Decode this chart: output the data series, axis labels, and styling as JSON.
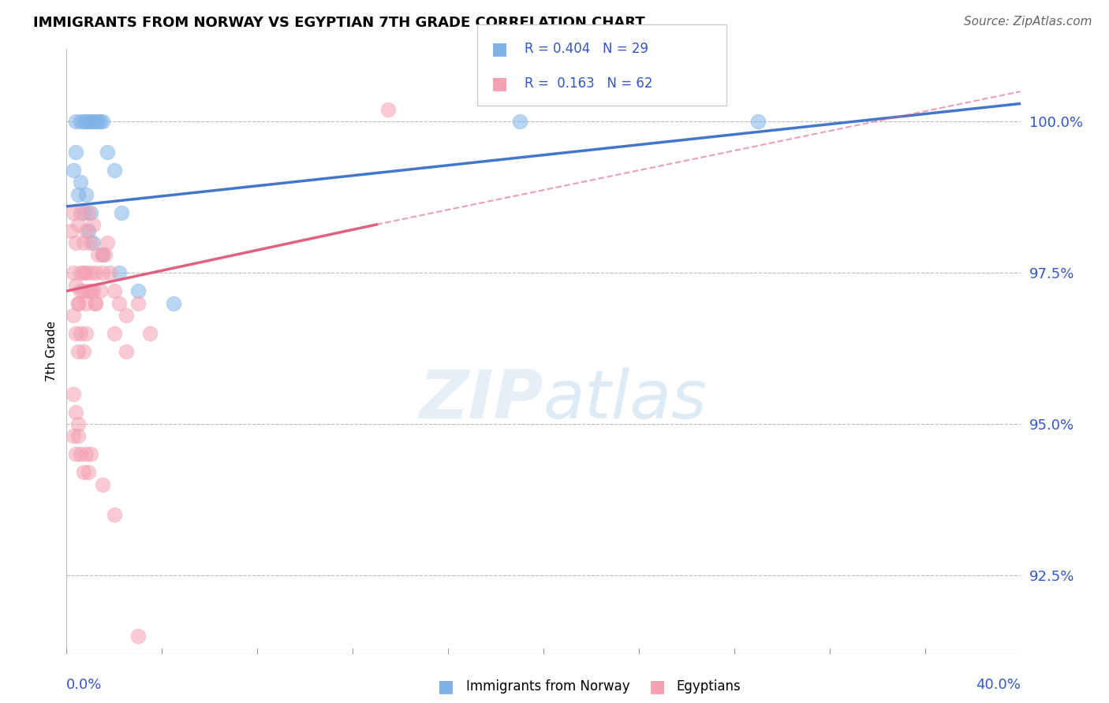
{
  "title": "IMMIGRANTS FROM NORWAY VS EGYPTIAN 7TH GRADE CORRELATION CHART",
  "source": "Source: ZipAtlas.com",
  "ylabel": "7th Grade",
  "yticks": [
    92.5,
    95.0,
    97.5,
    100.0
  ],
  "xmin": 0.0,
  "xmax": 40.0,
  "ymin": 91.2,
  "ymax": 101.2,
  "legend_r_norway": "R = 0.404",
  "legend_n_norway": "N = 29",
  "legend_r_egypt": "R =  0.163",
  "legend_n_egypt": "N = 62",
  "norway_color": "#7fb3e8",
  "egypt_color": "#f4a0b0",
  "norway_line_color": "#4477cc",
  "egypt_line_color": "#e06080",
  "norway_line_x0": 0.0,
  "norway_line_y0": 98.6,
  "norway_line_x1": 40.0,
  "norway_line_y1": 100.3,
  "egypt_line_solid_x0": 0.0,
  "egypt_line_solid_y0": 97.2,
  "egypt_line_solid_x1": 13.0,
  "egypt_line_solid_y1": 98.3,
  "egypt_line_dash_x0": 13.0,
  "egypt_line_dash_y0": 98.3,
  "egypt_line_dash_x1": 40.0,
  "egypt_line_dash_y1": 100.5,
  "norway_x": [
    0.4,
    0.6,
    0.7,
    0.8,
    0.9,
    1.0,
    1.1,
    1.2,
    1.3,
    1.4,
    1.5,
    1.7,
    2.0,
    2.3,
    0.3,
    0.5,
    0.7,
    0.9,
    1.1,
    1.5,
    2.2,
    3.0,
    4.5,
    0.4,
    0.6,
    0.8,
    1.0,
    19.0,
    29.0
  ],
  "norway_y": [
    100.0,
    100.0,
    100.0,
    100.0,
    100.0,
    100.0,
    100.0,
    100.0,
    100.0,
    100.0,
    100.0,
    99.5,
    99.2,
    98.5,
    99.2,
    98.8,
    98.5,
    98.2,
    98.0,
    97.8,
    97.5,
    97.2,
    97.0,
    99.5,
    99.0,
    98.8,
    98.5,
    100.0,
    100.0
  ],
  "egypt_x": [
    0.2,
    0.3,
    0.4,
    0.5,
    0.6,
    0.7,
    0.8,
    0.9,
    1.0,
    1.1,
    1.2,
    1.3,
    1.4,
    1.5,
    1.6,
    1.7,
    0.3,
    0.4,
    0.5,
    0.6,
    0.7,
    0.8,
    0.9,
    1.0,
    1.1,
    1.2,
    0.3,
    0.4,
    0.5,
    0.6,
    0.7,
    0.8,
    1.5,
    1.8,
    2.0,
    2.2,
    2.5,
    3.0,
    0.5,
    0.6,
    0.7,
    0.8,
    1.0,
    1.2,
    2.0,
    2.5,
    3.5,
    0.3,
    0.4,
    0.5,
    0.3,
    0.4,
    0.5,
    0.6,
    0.7,
    0.8,
    0.9,
    1.0,
    1.5,
    2.0,
    3.0,
    13.5
  ],
  "egypt_y": [
    98.2,
    98.5,
    98.0,
    98.3,
    98.5,
    98.0,
    98.2,
    98.5,
    98.0,
    98.3,
    97.5,
    97.8,
    97.2,
    97.5,
    97.8,
    98.0,
    97.5,
    97.3,
    97.0,
    97.2,
    97.5,
    97.0,
    97.2,
    97.5,
    97.2,
    97.0,
    96.8,
    96.5,
    96.2,
    96.5,
    96.2,
    96.5,
    97.8,
    97.5,
    97.2,
    97.0,
    96.8,
    97.0,
    97.0,
    97.5,
    97.2,
    97.5,
    97.2,
    97.0,
    96.5,
    96.2,
    96.5,
    95.5,
    95.2,
    95.0,
    94.8,
    94.5,
    94.8,
    94.5,
    94.2,
    94.5,
    94.2,
    94.5,
    94.0,
    93.5,
    91.5,
    100.2
  ]
}
